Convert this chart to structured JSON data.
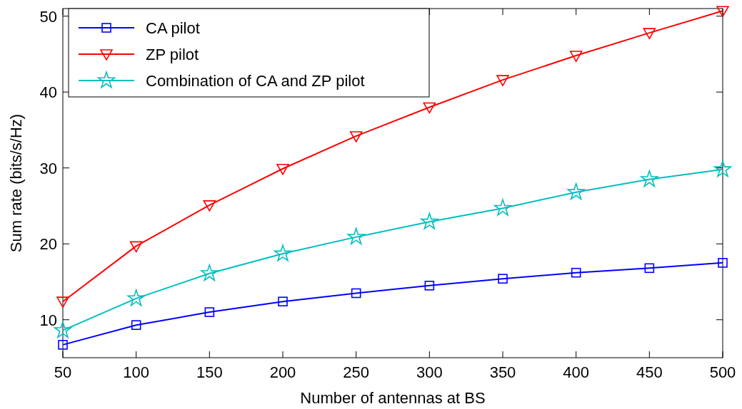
{
  "chart_data": {
    "type": "line",
    "xlabel": "Number of antennas at BS",
    "ylabel": "Sum rate (bits/s/Hz)",
    "x": [
      50,
      100,
      150,
      200,
      250,
      300,
      350,
      400,
      450,
      500
    ],
    "xlim": [
      50,
      500
    ],
    "xticks": [
      50,
      100,
      150,
      200,
      250,
      300,
      350,
      400,
      450,
      500
    ],
    "ylim": [
      5,
      51
    ],
    "yticks": [
      10,
      20,
      30,
      40,
      50
    ],
    "legend": "top left",
    "grid": false,
    "line_style": "solid",
    "series": [
      {
        "name": "CA pilot",
        "color": "#0000ff",
        "marker": "square",
        "values": [
          6.7,
          9.3,
          11.0,
          12.4,
          13.5,
          14.5,
          15.4,
          16.2,
          16.8,
          17.5
        ]
      },
      {
        "name": "ZP pilot",
        "color": "#ff0000",
        "marker": "triangle",
        "values": [
          12.4,
          19.7,
          25.1,
          29.9,
          34.2,
          38.0,
          41.6,
          44.8,
          47.8,
          50.7
        ]
      },
      {
        "name": "Combination of CA and ZP pilot",
        "color": "#00bfbf",
        "marker": "star",
        "values": [
          8.6,
          12.8,
          16.1,
          18.7,
          20.9,
          22.9,
          24.7,
          26.8,
          28.5,
          29.8
        ]
      }
    ]
  }
}
